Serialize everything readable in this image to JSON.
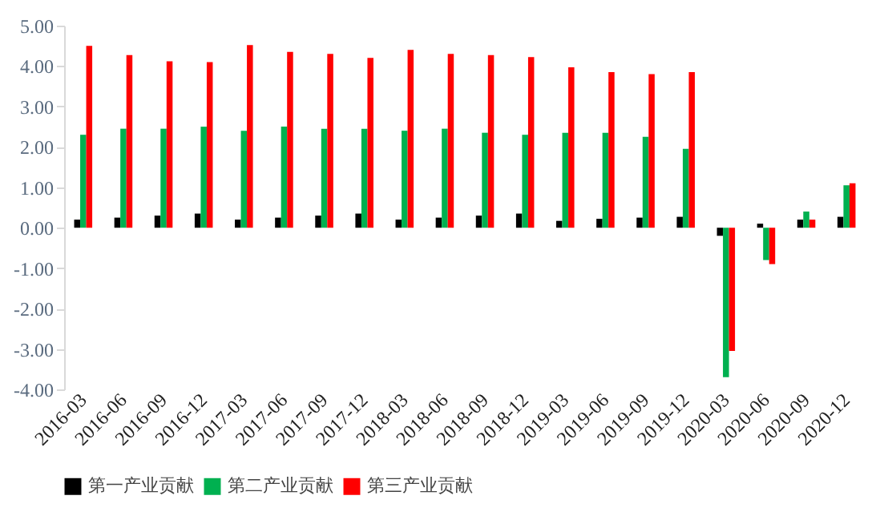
{
  "chart_data": {
    "type": "bar",
    "categories": [
      "2016-03",
      "2016-06",
      "2016-09",
      "2016-12",
      "2017-03",
      "2017-06",
      "2017-09",
      "2017-12",
      "2018-03",
      "2018-06",
      "2018-09",
      "2018-12",
      "2019-03",
      "2019-06",
      "2019-09",
      "2019-12",
      "2020-03",
      "2020-06",
      "2020-09",
      "2020-12"
    ],
    "series": [
      {
        "name": "第一产业贡献",
        "color": "#000000",
        "values": [
          0.2,
          0.25,
          0.3,
          0.35,
          0.2,
          0.25,
          0.3,
          0.35,
          0.2,
          0.25,
          0.3,
          0.35,
          0.17,
          0.22,
          0.25,
          0.27,
          -0.2,
          0.1,
          0.2,
          0.27
        ]
      },
      {
        "name": "第二产业贡献",
        "color": "#00b050",
        "values": [
          2.3,
          2.45,
          2.45,
          2.5,
          2.4,
          2.5,
          2.45,
          2.45,
          2.4,
          2.45,
          2.35,
          2.3,
          2.35,
          2.35,
          2.25,
          1.95,
          -3.7,
          -0.8,
          0.4,
          1.05
        ]
      },
      {
        "name": "第三产业贡献",
        "color": "#ff0000",
        "values": [
          4.5,
          4.27,
          4.12,
          4.1,
          4.52,
          4.35,
          4.3,
          4.2,
          4.4,
          4.3,
          4.27,
          4.22,
          3.97,
          3.85,
          3.8,
          3.85,
          -3.05,
          -0.9,
          0.2,
          1.1
        ]
      }
    ],
    "ylim": [
      -4,
      5
    ],
    "yticks": [
      {
        "value": -4,
        "label": "-4.00"
      },
      {
        "value": -3,
        "label": "-3.00"
      },
      {
        "value": -2,
        "label": "-2.00"
      },
      {
        "value": -1,
        "label": "-1.00"
      },
      {
        "value": 0,
        "label": "0.00"
      },
      {
        "value": 1,
        "label": "1.00"
      },
      {
        "value": 2,
        "label": "2.00"
      },
      {
        "value": 3,
        "label": "3.00"
      },
      {
        "value": 4,
        "label": "4.00"
      },
      {
        "value": 5,
        "label": "5.00"
      }
    ],
    "grid": false,
    "legend": "bottom"
  }
}
